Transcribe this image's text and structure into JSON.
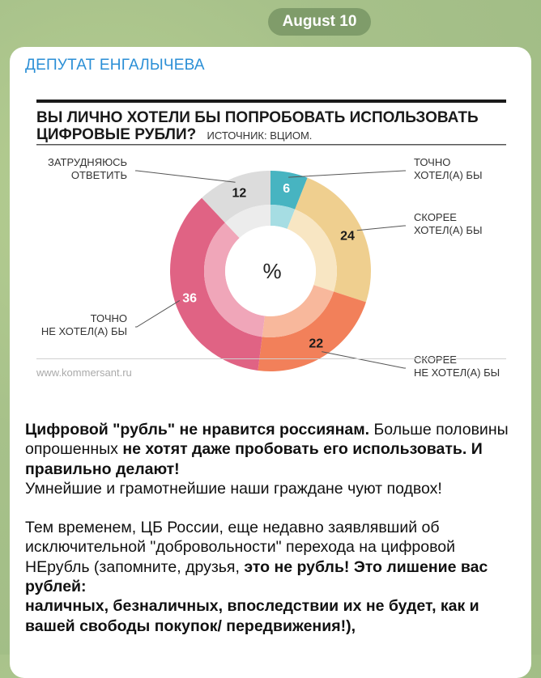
{
  "date_label": "August 10",
  "sender_name": "ДЕПУТАТ ЕНГАЛЫЧЕВА",
  "chart_data": {
    "type": "pie",
    "title_line1": "ВЫ ЛИЧНО ХОТЕЛИ БЫ ПОПРОБОВАТЬ ИСПОЛЬЗОВАТЬ",
    "title_line2": "ЦИФРОВЫЕ РУБЛИ?",
    "source": "ИСТОЧНИК: ВЦИОМ.",
    "center_label": "%",
    "footer": "www.kommersant.ru",
    "slices": [
      {
        "label_line1": "ТОЧНО",
        "label_line2": "ХОТЕЛ(А) БЫ",
        "value": 6,
        "color": "#47b4c1",
        "inner_color": "#a6dde3"
      },
      {
        "label_line1": "СКОРЕЕ",
        "label_line2": "ХОТЕЛ(А) БЫ",
        "value": 24,
        "color": "#efcf8f",
        "inner_color": "#f8e6c3"
      },
      {
        "label_line1": "СКОРЕЕ",
        "label_line2": "НЕ ХОТЕЛ(А) БЫ",
        "value": 22,
        "color": "#f2805a",
        "inner_color": "#f8b89c"
      },
      {
        "label_line1": "ТОЧНО",
        "label_line2": "НЕ ХОТЕЛ(А) БЫ",
        "value": 36,
        "color": "#e06384",
        "inner_color": "#f0a6b9"
      },
      {
        "label_line1": "ЗАТРУДНЯЮСЬ",
        "label_line2": "ОТВЕТИТЬ",
        "value": 12,
        "color": "#dcdcdc",
        "inner_color": "#ececec"
      }
    ]
  },
  "message": {
    "p1_b1": "Цифровой \"рубль\" не нравится россиянам.",
    "p1_t1": " Больше половины опрошенных ",
    "p1_b2": "не хотят даже пробовать его использовать. И правильно делают!",
    "p2": "Умнейшие и грамотнейшие наши граждане чуют подвох!",
    "p3_t1": "Тем временем, ЦБ России, еще недавно заявлявший об исключительной \"добровольности\" перехода на цифровой НЕрубль (запомните, друзья, ",
    "p3_b1": "это не рубль! Это лишение вас рублей:",
    "p4_b1": "наличных, безналичных, впоследствии их не будет, как и вашей свободы покупок/  передвижения!),"
  }
}
